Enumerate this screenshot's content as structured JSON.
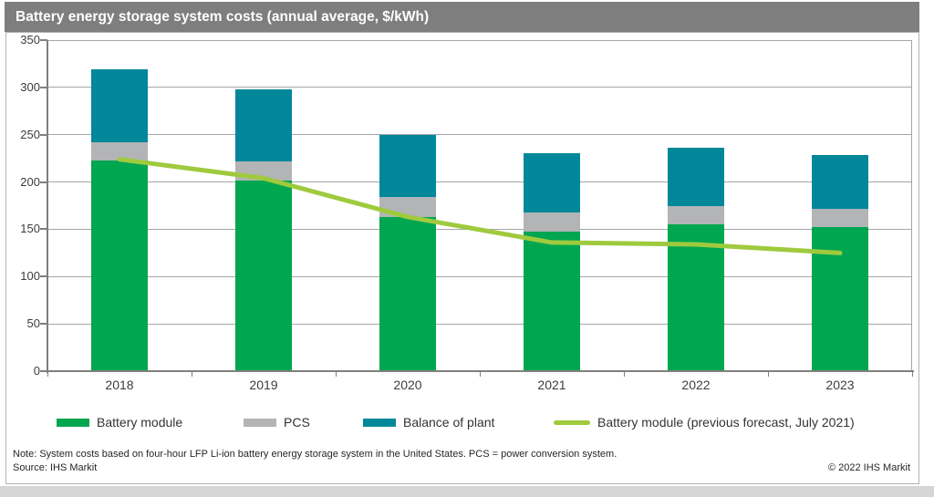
{
  "header": {
    "title": "Battery energy storage system costs (annual average, $/kWh)"
  },
  "chart_data": {
    "type": "bar",
    "stacked": true,
    "title": "Battery energy storage system costs (annual average, $/kWh)",
    "categories": [
      "2018",
      "2019",
      "2020",
      "2021",
      "2022",
      "2023"
    ],
    "series": [
      {
        "name": "Battery module",
        "color": "#00a650",
        "values": [
          223,
          202,
          163,
          148,
          155,
          152
        ]
      },
      {
        "name": "PCS",
        "color": "#b2b4b6",
        "values": [
          19,
          20,
          21,
          20,
          20,
          20
        ]
      },
      {
        "name": "Balance of plant",
        "color": "#00889a",
        "values": [
          77,
          76,
          66,
          62,
          61,
          57
        ]
      }
    ],
    "bar_totals": [
      319,
      298,
      250,
      230,
      236,
      229
    ],
    "line_series": {
      "name": "Battery module (previous forecast, July 2021)",
      "color": "#9fca3e",
      "values": [
        224,
        204,
        163,
        136,
        134,
        125
      ]
    },
    "ylim": [
      0,
      350
    ],
    "y_ticks": [
      0,
      50,
      100,
      150,
      200,
      250,
      300,
      350
    ],
    "grid": "horizontal",
    "legend_position": "bottom"
  },
  "footer": {
    "note": "Note: System costs based on four-hour LFP Li-ion battery energy storage system in the United States. PCS = power conversion system.",
    "source": "Source: IHS Markit",
    "copyright": "© 2022 IHS Markit"
  }
}
